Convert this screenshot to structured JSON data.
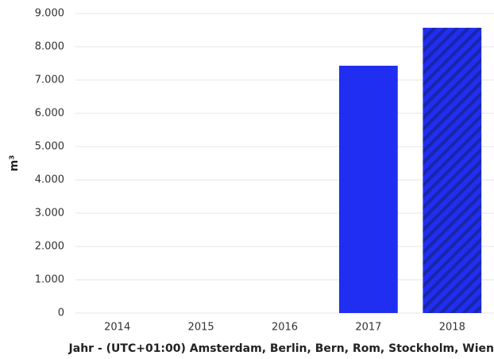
{
  "chart_data": {
    "type": "bar",
    "categories": [
      "2014",
      "2015",
      "2016",
      "2017",
      "2018"
    ],
    "values": [
      null,
      null,
      null,
      7430,
      8570
    ],
    "color": "#1f2ef0",
    "hatch": [
      false,
      false,
      false,
      false,
      true
    ],
    "ylabel": "m³",
    "xlabel": "Jahr - (UTC+01:00) Amsterdam, Berlin, Bern, Rom, Stockholm, Wien",
    "ylim": [
      0,
      9000
    ],
    "yticks": [
      0,
      {
        "value": 1000,
        "label": "1.000"
      },
      {
        "value": 2000,
        "label": "2.000"
      },
      {
        "value": 3000,
        "label": "3.000"
      },
      {
        "value": 4000,
        "label": "4.000"
      },
      {
        "value": 5000,
        "label": "5.000"
      },
      {
        "value": 6000,
        "label": "6.000"
      },
      {
        "value": 7000,
        "label": "7.000"
      },
      {
        "value": 8000,
        "label": "8.000"
      },
      {
        "value": 9000,
        "label": "9.000"
      }
    ],
    "grid": true
  }
}
